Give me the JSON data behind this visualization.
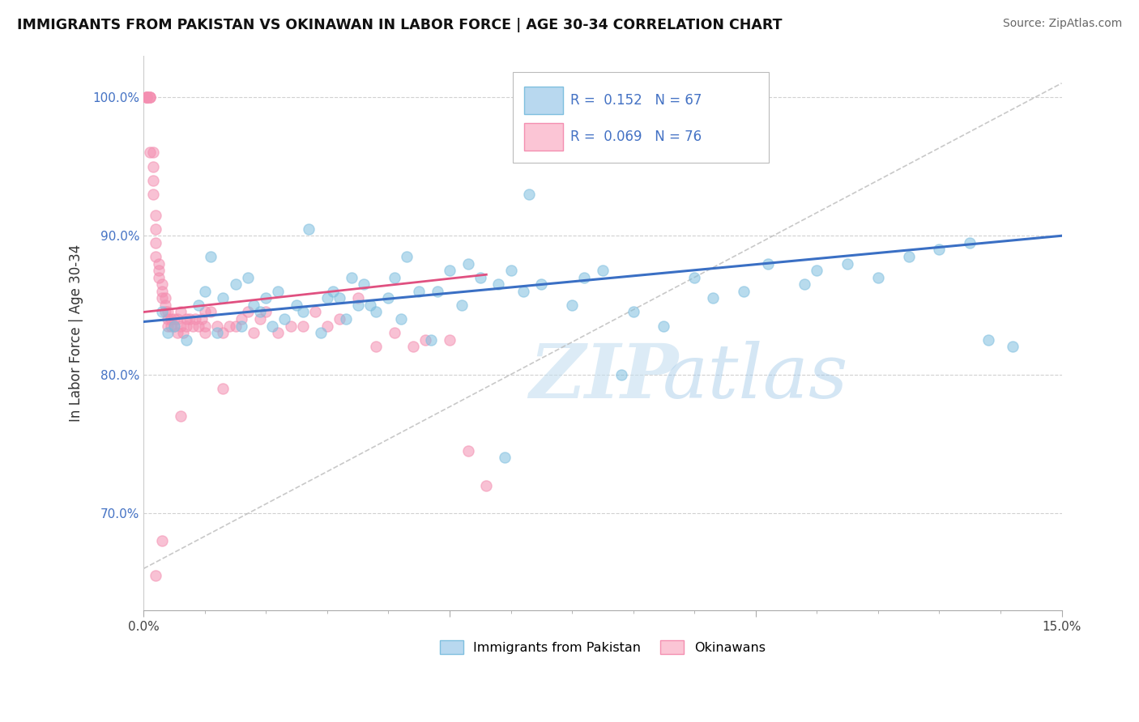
{
  "title": "IMMIGRANTS FROM PAKISTAN VS OKINAWAN IN LABOR FORCE | AGE 30-34 CORRELATION CHART",
  "source": "Source: ZipAtlas.com",
  "ylabel": "In Labor Force | Age 30-34",
  "xlim": [
    0.0,
    15.0
  ],
  "ylim": [
    63.0,
    103.0
  ],
  "legend_r1": "0.152",
  "legend_n1": "67",
  "legend_r2": "0.069",
  "legend_n2": "76",
  "blue_color": "#7fbfdf",
  "pink_color": "#f48fb1",
  "trend_blue": "#3a6fc4",
  "trend_pink": "#e05080",
  "watermark_zip": "ZIP",
  "watermark_atlas": "atlas",
  "pakistan_x": [
    0.3,
    0.4,
    0.5,
    0.7,
    0.9,
    1.0,
    1.1,
    1.2,
    1.3,
    1.5,
    1.6,
    1.7,
    1.8,
    1.9,
    2.0,
    2.1,
    2.2,
    2.3,
    2.5,
    2.6,
    2.7,
    2.9,
    3.0,
    3.1,
    3.2,
    3.3,
    3.4,
    3.5,
    3.6,
    3.7,
    3.8,
    4.0,
    4.1,
    4.2,
    4.3,
    4.5,
    4.7,
    4.8,
    5.0,
    5.2,
    5.3,
    5.5,
    5.8,
    5.9,
    6.0,
    6.2,
    6.3,
    6.5,
    7.0,
    7.2,
    7.5,
    7.8,
    8.0,
    8.5,
    9.0,
    9.3,
    9.8,
    10.2,
    10.8,
    11.0,
    11.5,
    12.0,
    12.5,
    13.0,
    13.5,
    13.8,
    14.2
  ],
  "pakistan_y": [
    84.5,
    83.0,
    83.5,
    82.5,
    85.0,
    86.0,
    88.5,
    83.0,
    85.5,
    86.5,
    83.5,
    87.0,
    85.0,
    84.5,
    85.5,
    83.5,
    86.0,
    84.0,
    85.0,
    84.5,
    90.5,
    83.0,
    85.5,
    86.0,
    85.5,
    84.0,
    87.0,
    85.0,
    86.5,
    85.0,
    84.5,
    85.5,
    87.0,
    84.0,
    88.5,
    86.0,
    82.5,
    86.0,
    87.5,
    85.0,
    88.0,
    87.0,
    86.5,
    74.0,
    87.5,
    86.0,
    93.0,
    86.5,
    85.0,
    87.0,
    87.5,
    80.0,
    84.5,
    83.5,
    87.0,
    85.5,
    86.0,
    88.0,
    86.5,
    87.5,
    88.0,
    87.0,
    88.5,
    89.0,
    89.5,
    82.5,
    82.0
  ],
  "okinawan_x": [
    0.05,
    0.05,
    0.05,
    0.05,
    0.05,
    0.1,
    0.1,
    0.1,
    0.1,
    0.15,
    0.15,
    0.15,
    0.15,
    0.2,
    0.2,
    0.2,
    0.2,
    0.25,
    0.25,
    0.25,
    0.3,
    0.3,
    0.3,
    0.35,
    0.35,
    0.35,
    0.4,
    0.4,
    0.4,
    0.45,
    0.45,
    0.5,
    0.5,
    0.55,
    0.55,
    0.6,
    0.6,
    0.65,
    0.7,
    0.7,
    0.75,
    0.8,
    0.85,
    0.9,
    0.95,
    1.0,
    1.0,
    1.0,
    1.1,
    1.2,
    1.3,
    1.4,
    1.5,
    1.6,
    1.7,
    1.8,
    1.9,
    2.0,
    2.2,
    2.4,
    2.6,
    2.8,
    3.0,
    3.2,
    3.5,
    3.8,
    4.1,
    4.4,
    4.6,
    5.0,
    5.3,
    5.6,
    0.3,
    0.6,
    1.3,
    0.2
  ],
  "okinawan_y": [
    100.0,
    100.0,
    100.0,
    100.0,
    100.0,
    100.0,
    100.0,
    100.0,
    96.0,
    96.0,
    95.0,
    94.0,
    93.0,
    91.5,
    90.5,
    89.5,
    88.5,
    88.0,
    87.5,
    87.0,
    86.5,
    86.0,
    85.5,
    85.5,
    85.0,
    84.5,
    84.0,
    84.5,
    83.5,
    84.0,
    83.5,
    84.0,
    83.5,
    84.0,
    83.0,
    83.5,
    84.5,
    83.0,
    84.0,
    83.5,
    84.0,
    83.5,
    84.0,
    83.5,
    84.0,
    83.0,
    83.5,
    84.5,
    84.5,
    83.5,
    83.0,
    83.5,
    83.5,
    84.0,
    84.5,
    83.0,
    84.0,
    84.5,
    83.0,
    83.5,
    83.5,
    84.5,
    83.5,
    84.0,
    85.5,
    82.0,
    83.0,
    82.0,
    82.5,
    82.5,
    74.5,
    72.0,
    68.0,
    77.0,
    79.0,
    65.5
  ],
  "blue_trend_x0": 0.0,
  "blue_trend_y0": 83.8,
  "blue_trend_x1": 15.0,
  "blue_trend_y1": 90.0,
  "pink_trend_x0": 0.0,
  "pink_trend_y0": 84.5,
  "pink_trend_x1": 5.6,
  "pink_trend_y1": 87.2,
  "dash_x0": 0.0,
  "dash_y0": 66.0,
  "dash_x1": 15.0,
  "dash_y1": 101.0
}
